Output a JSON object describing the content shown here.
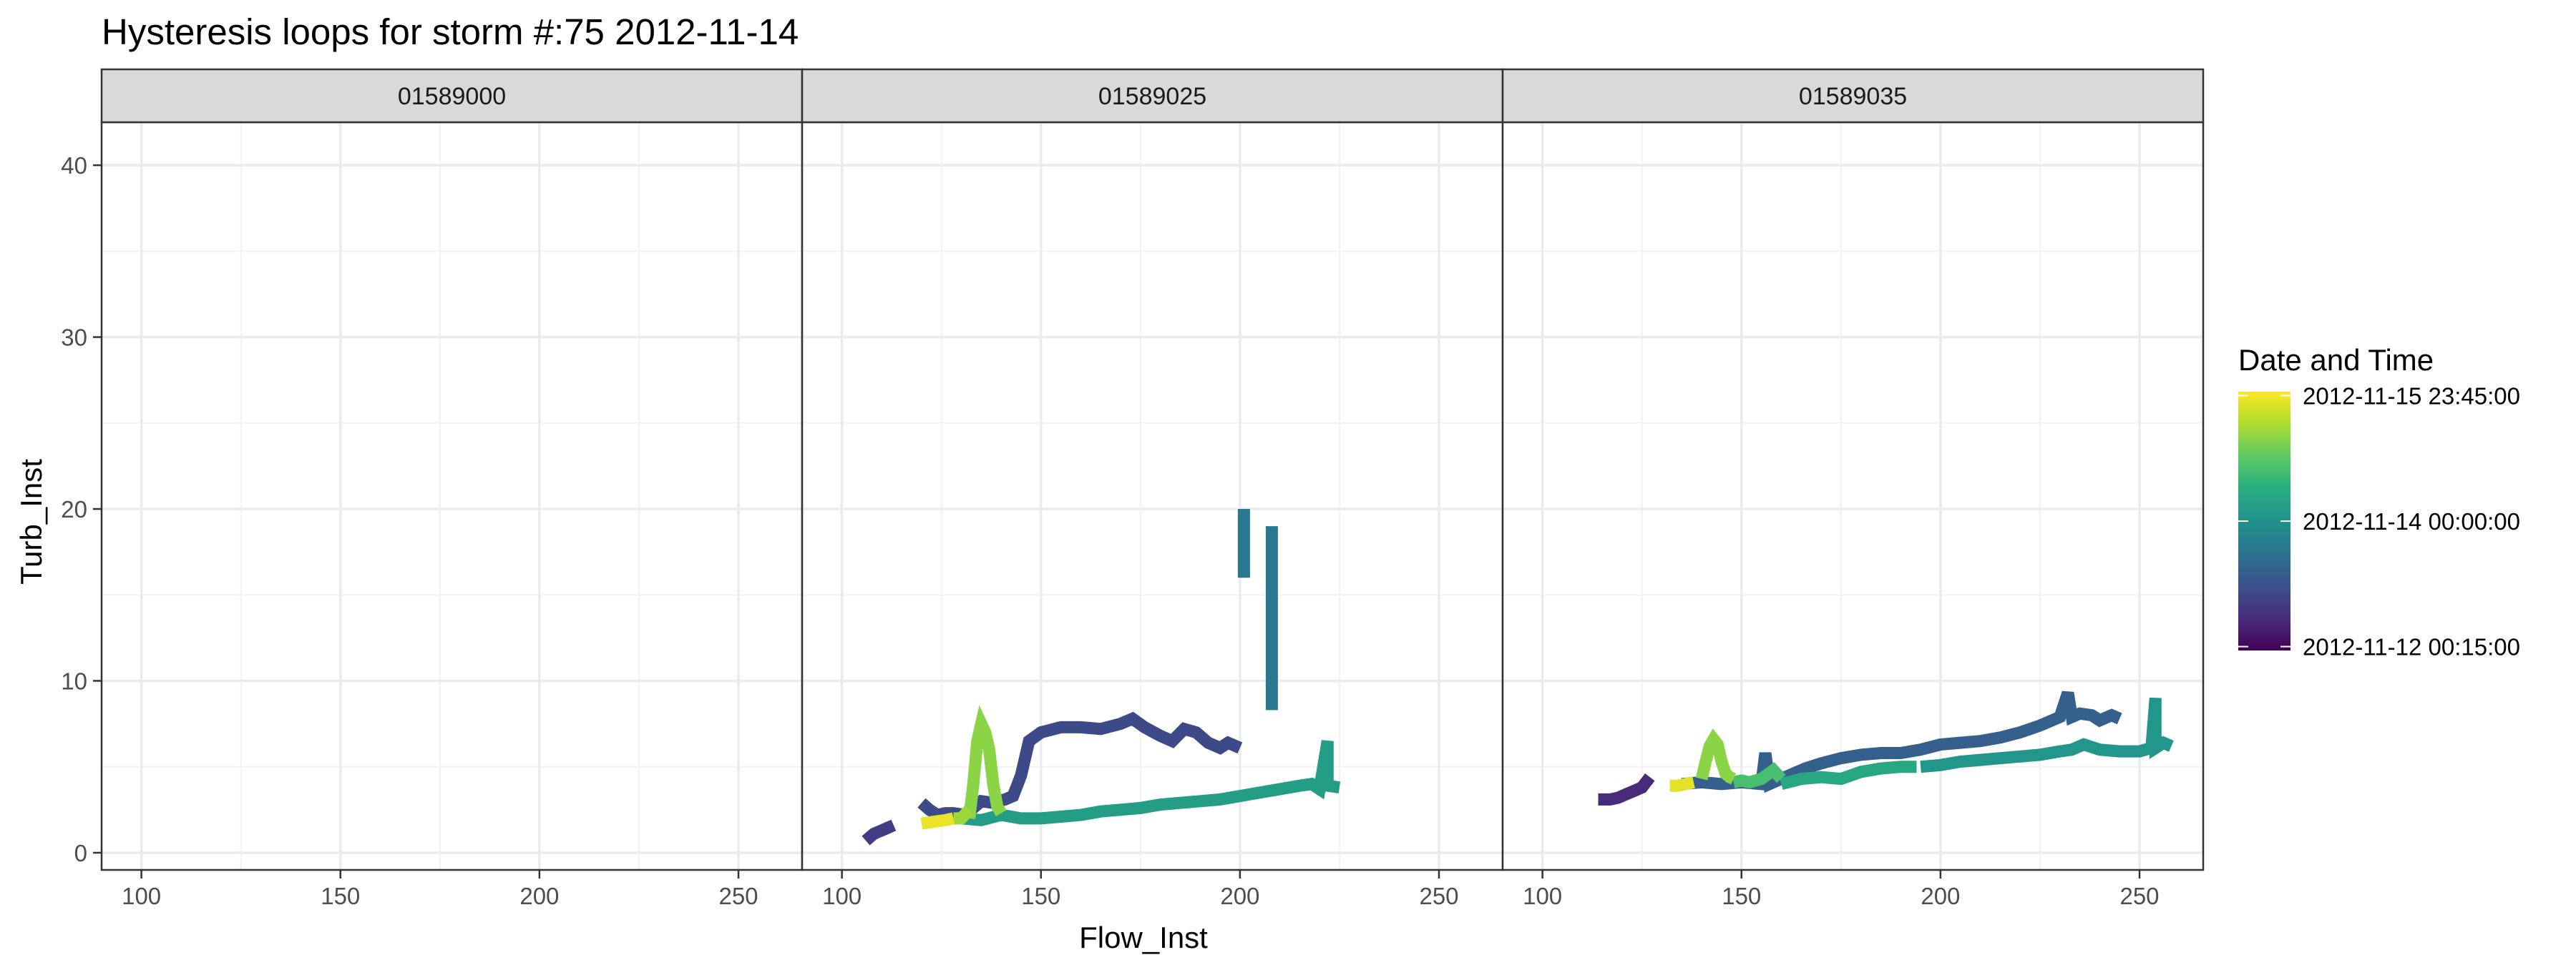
{
  "chart_data": {
    "type": "line",
    "title": "Hysteresis loops for storm #:75   2012-11-14",
    "xlabel": "Flow_Inst",
    "ylabel": "Turb_Inst",
    "xlim": [
      90,
      266
    ],
    "ylim": [
      -1,
      42.5
    ],
    "x_ticks": [
      100,
      150,
      200,
      250
    ],
    "x_tick_labels": [
      "100",
      "150",
      "200",
      "250"
    ],
    "y_ticks": [
      0,
      10,
      20,
      30,
      40
    ],
    "y_tick_labels": [
      "0",
      "10",
      "20",
      "30",
      "40"
    ],
    "grid": true,
    "legend": {
      "title": "Date and Time",
      "position": "right",
      "colormap": "viridis",
      "labels": [
        "2012-11-15 23:45:00",
        "2012-11-14 00:00:00",
        "2012-11-12 00:15:00"
      ],
      "label_fractions": [
        0.985,
        0.5,
        0.015
      ]
    },
    "panels": [
      {
        "name": "01589000",
        "segments": []
      },
      {
        "name": "01589025",
        "segments": [
          {
            "t": 0.18,
            "points": [
              [
                106,
                0.7
              ],
              [
                108,
                1.1
              ],
              [
                111,
                1.4
              ],
              [
                113,
                1.6
              ]
            ]
          },
          {
            "t": 0.22,
            "points": [
              [
                120,
                2.9
              ],
              [
                122,
                2.5
              ],
              [
                124,
                2.2
              ],
              [
                126,
                2.3
              ],
              [
                128,
                2.3
              ],
              [
                131,
                2.2
              ],
              [
                133,
                2.6
              ],
              [
                135,
                3.0
              ],
              [
                138,
                2.9
              ],
              [
                141,
                3.1
              ],
              [
                143,
                3.3
              ],
              [
                145,
                4.5
              ],
              [
                147,
                6.5
              ],
              [
                150,
                7.0
              ],
              [
                155,
                7.3
              ],
              [
                160,
                7.3
              ],
              [
                165,
                7.2
              ],
              [
                170,
                7.5
              ],
              [
                173,
                7.8
              ],
              [
                176,
                7.3
              ],
              [
                180,
                6.8
              ],
              [
                183,
                6.5
              ],
              [
                186,
                7.2
              ],
              [
                189,
                7.0
              ],
              [
                192,
                6.4
              ],
              [
                195,
                6.1
              ],
              [
                197,
                6.4
              ],
              [
                200,
                6.1
              ]
            ]
          },
          {
            "t": 0.4,
            "points": [
              [
                201,
                20
              ],
              [
                201,
                16
              ]
            ]
          },
          {
            "t": 0.4,
            "points": [
              [
                208,
                19
              ],
              [
                208,
                8.3
              ]
            ]
          },
          {
            "t": 0.55,
            "points": [
              [
                130,
                2.0
              ],
              [
                135,
                1.9
              ],
              [
                140,
                2.2
              ],
              [
                145,
                2.0
              ],
              [
                150,
                2.0
              ],
              [
                155,
                2.1
              ],
              [
                160,
                2.2
              ],
              [
                165,
                2.4
              ],
              [
                170,
                2.5
              ],
              [
                175,
                2.6
              ],
              [
                180,
                2.8
              ],
              [
                185,
                2.9
              ],
              [
                190,
                3.0
              ],
              [
                195,
                3.1
              ],
              [
                200,
                3.3
              ],
              [
                205,
                3.5
              ],
              [
                210,
                3.7
              ],
              [
                215,
                3.9
              ],
              [
                218,
                4.0
              ],
              [
                220,
                3.7
              ],
              [
                222,
                6.5
              ],
              [
                222,
                3.9
              ],
              [
                225,
                3.8
              ]
            ]
          },
          {
            "t": 0.82,
            "points": [
              [
                132,
                2.0
              ],
              [
                133,
                4.0
              ],
              [
                134,
                6.5
              ],
              [
                135,
                7.5
              ],
              [
                136,
                7.0
              ],
              [
                137,
                6.0
              ],
              [
                138,
                4.0
              ],
              [
                139,
                2.7
              ],
              [
                140,
                2.3
              ]
            ]
          },
          {
            "t": 0.85,
            "points": [
              [
                128,
                2.0
              ],
              [
                130,
                2.0
              ],
              [
                132,
                2.5
              ]
            ]
          },
          {
            "t": 0.97,
            "points": [
              [
                120,
                1.7
              ],
              [
                123,
                1.8
              ],
              [
                126,
                1.9
              ],
              [
                128,
                2.0
              ]
            ]
          }
        ]
      },
      {
        "name": "01589035",
        "segments": [
          {
            "t": 0.12,
            "points": [
              [
                114,
                3.1
              ],
              [
                117,
                3.1
              ],
              [
                119,
                3.2
              ],
              [
                121,
                3.4
              ],
              [
                123,
                3.6
              ],
              [
                125,
                3.8
              ],
              [
                127,
                4.4
              ]
            ]
          },
          {
            "t": 0.3,
            "points": [
              [
                135,
                4.0
              ],
              [
                140,
                4.1
              ],
              [
                145,
                4.0
              ],
              [
                150,
                4.1
              ],
              [
                155,
                4.0
              ],
              [
                156,
                5.8
              ],
              [
                157,
                4.0
              ],
              [
                160,
                4.3
              ],
              [
                163,
                4.6
              ],
              [
                166,
                4.9
              ],
              [
                170,
                5.2
              ],
              [
                175,
                5.5
              ],
              [
                180,
                5.7
              ],
              [
                185,
                5.8
              ],
              [
                190,
                5.8
              ],
              [
                195,
                6.0
              ],
              [
                200,
                6.3
              ],
              [
                205,
                6.4
              ],
              [
                210,
                6.5
              ],
              [
                215,
                6.7
              ],
              [
                220,
                7.0
              ],
              [
                225,
                7.4
              ],
              [
                230,
                7.9
              ],
              [
                232,
                9.3
              ],
              [
                233,
                7.9
              ],
              [
                235,
                8.1
              ],
              [
                238,
                8.0
              ],
              [
                240,
                7.7
              ],
              [
                243,
                8.0
              ],
              [
                245,
                7.8
              ]
            ]
          },
          {
            "t": 0.52,
            "points": [
              [
                195,
                5.0
              ],
              [
                200,
                5.1
              ],
              [
                205,
                5.3
              ],
              [
                210,
                5.4
              ],
              [
                215,
                5.5
              ],
              [
                220,
                5.6
              ],
              [
                225,
                5.7
              ],
              [
                230,
                5.9
              ],
              [
                233,
                6.0
              ],
              [
                236,
                6.3
              ],
              [
                240,
                6.0
              ],
              [
                245,
                5.9
              ],
              [
                250,
                5.9
              ],
              [
                253,
                6.1
              ],
              [
                254,
                9.0
              ],
              [
                254,
                6.1
              ],
              [
                256,
                6.4
              ],
              [
                258,
                6.2
              ]
            ]
          },
          {
            "t": 0.6,
            "points": [
              [
                160,
                4.0
              ],
              [
                165,
                4.3
              ],
              [
                170,
                4.4
              ],
              [
                175,
                4.3
              ],
              [
                180,
                4.7
              ],
              [
                185,
                4.9
              ],
              [
                190,
                5.0
              ],
              [
                194,
                5.0
              ]
            ]
          },
          {
            "t": 0.7,
            "points": [
              [
                148,
                4.1
              ],
              [
                150,
                4.2
              ],
              [
                152,
                4.1
              ],
              [
                155,
                4.3
              ],
              [
                158,
                4.8
              ],
              [
                160,
                4.3
              ]
            ]
          },
          {
            "t": 0.82,
            "points": [
              [
                140,
                4.3
              ],
              [
                141,
                5.3
              ],
              [
                142,
                6.2
              ],
              [
                143,
                6.6
              ],
              [
                144,
                6.3
              ],
              [
                145,
                5.3
              ],
              [
                146,
                4.6
              ],
              [
                147,
                4.4
              ],
              [
                148,
                4.3
              ]
            ]
          },
          {
            "t": 0.96,
            "points": [
              [
                132,
                3.9
              ],
              [
                134,
                3.9
              ],
              [
                136,
                4.0
              ],
              [
                138,
                4.1
              ]
            ]
          }
        ]
      }
    ]
  }
}
